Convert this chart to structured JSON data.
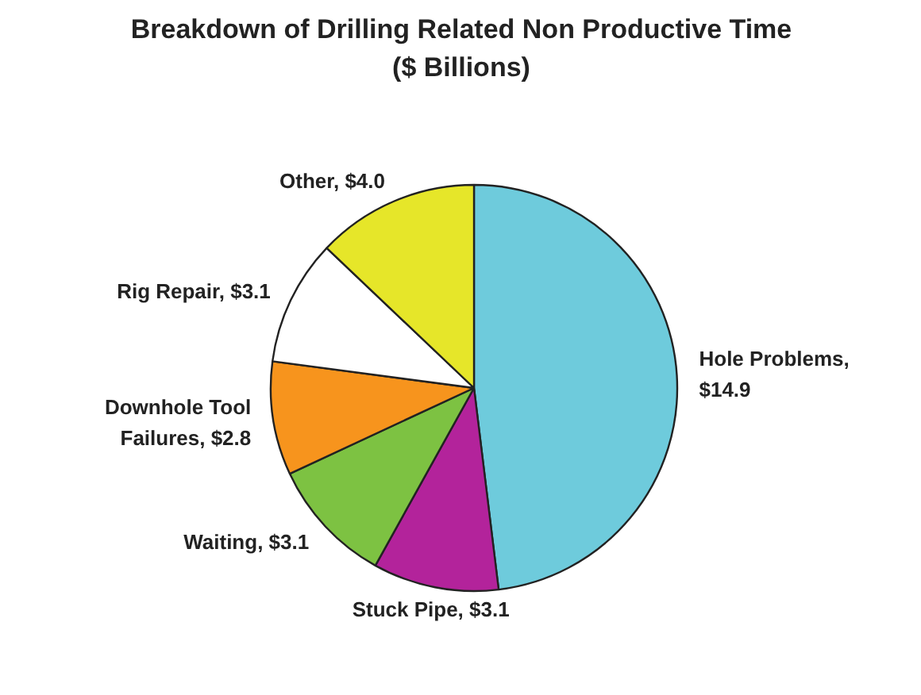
{
  "chart_data": {
    "type": "pie",
    "title": "Breakdown of Drilling Related Non Productive Time",
    "subtitle": "($ Billions)",
    "categories": [
      "Hole Problems, $14.9",
      "Stuck Pipe, $3.1",
      "Waiting, $3.1",
      "Downhole Tool Failures, $2.8",
      "Rig Repair, $3.1",
      "Other, $4.0"
    ],
    "values": [
      14.9,
      3.1,
      3.1,
      2.8,
      3.1,
      4.0
    ],
    "colors": [
      "#6ecbdc",
      "#b3239b",
      "#7dc242",
      "#f7941d",
      "#ffffff",
      "#e6e629"
    ]
  }
}
